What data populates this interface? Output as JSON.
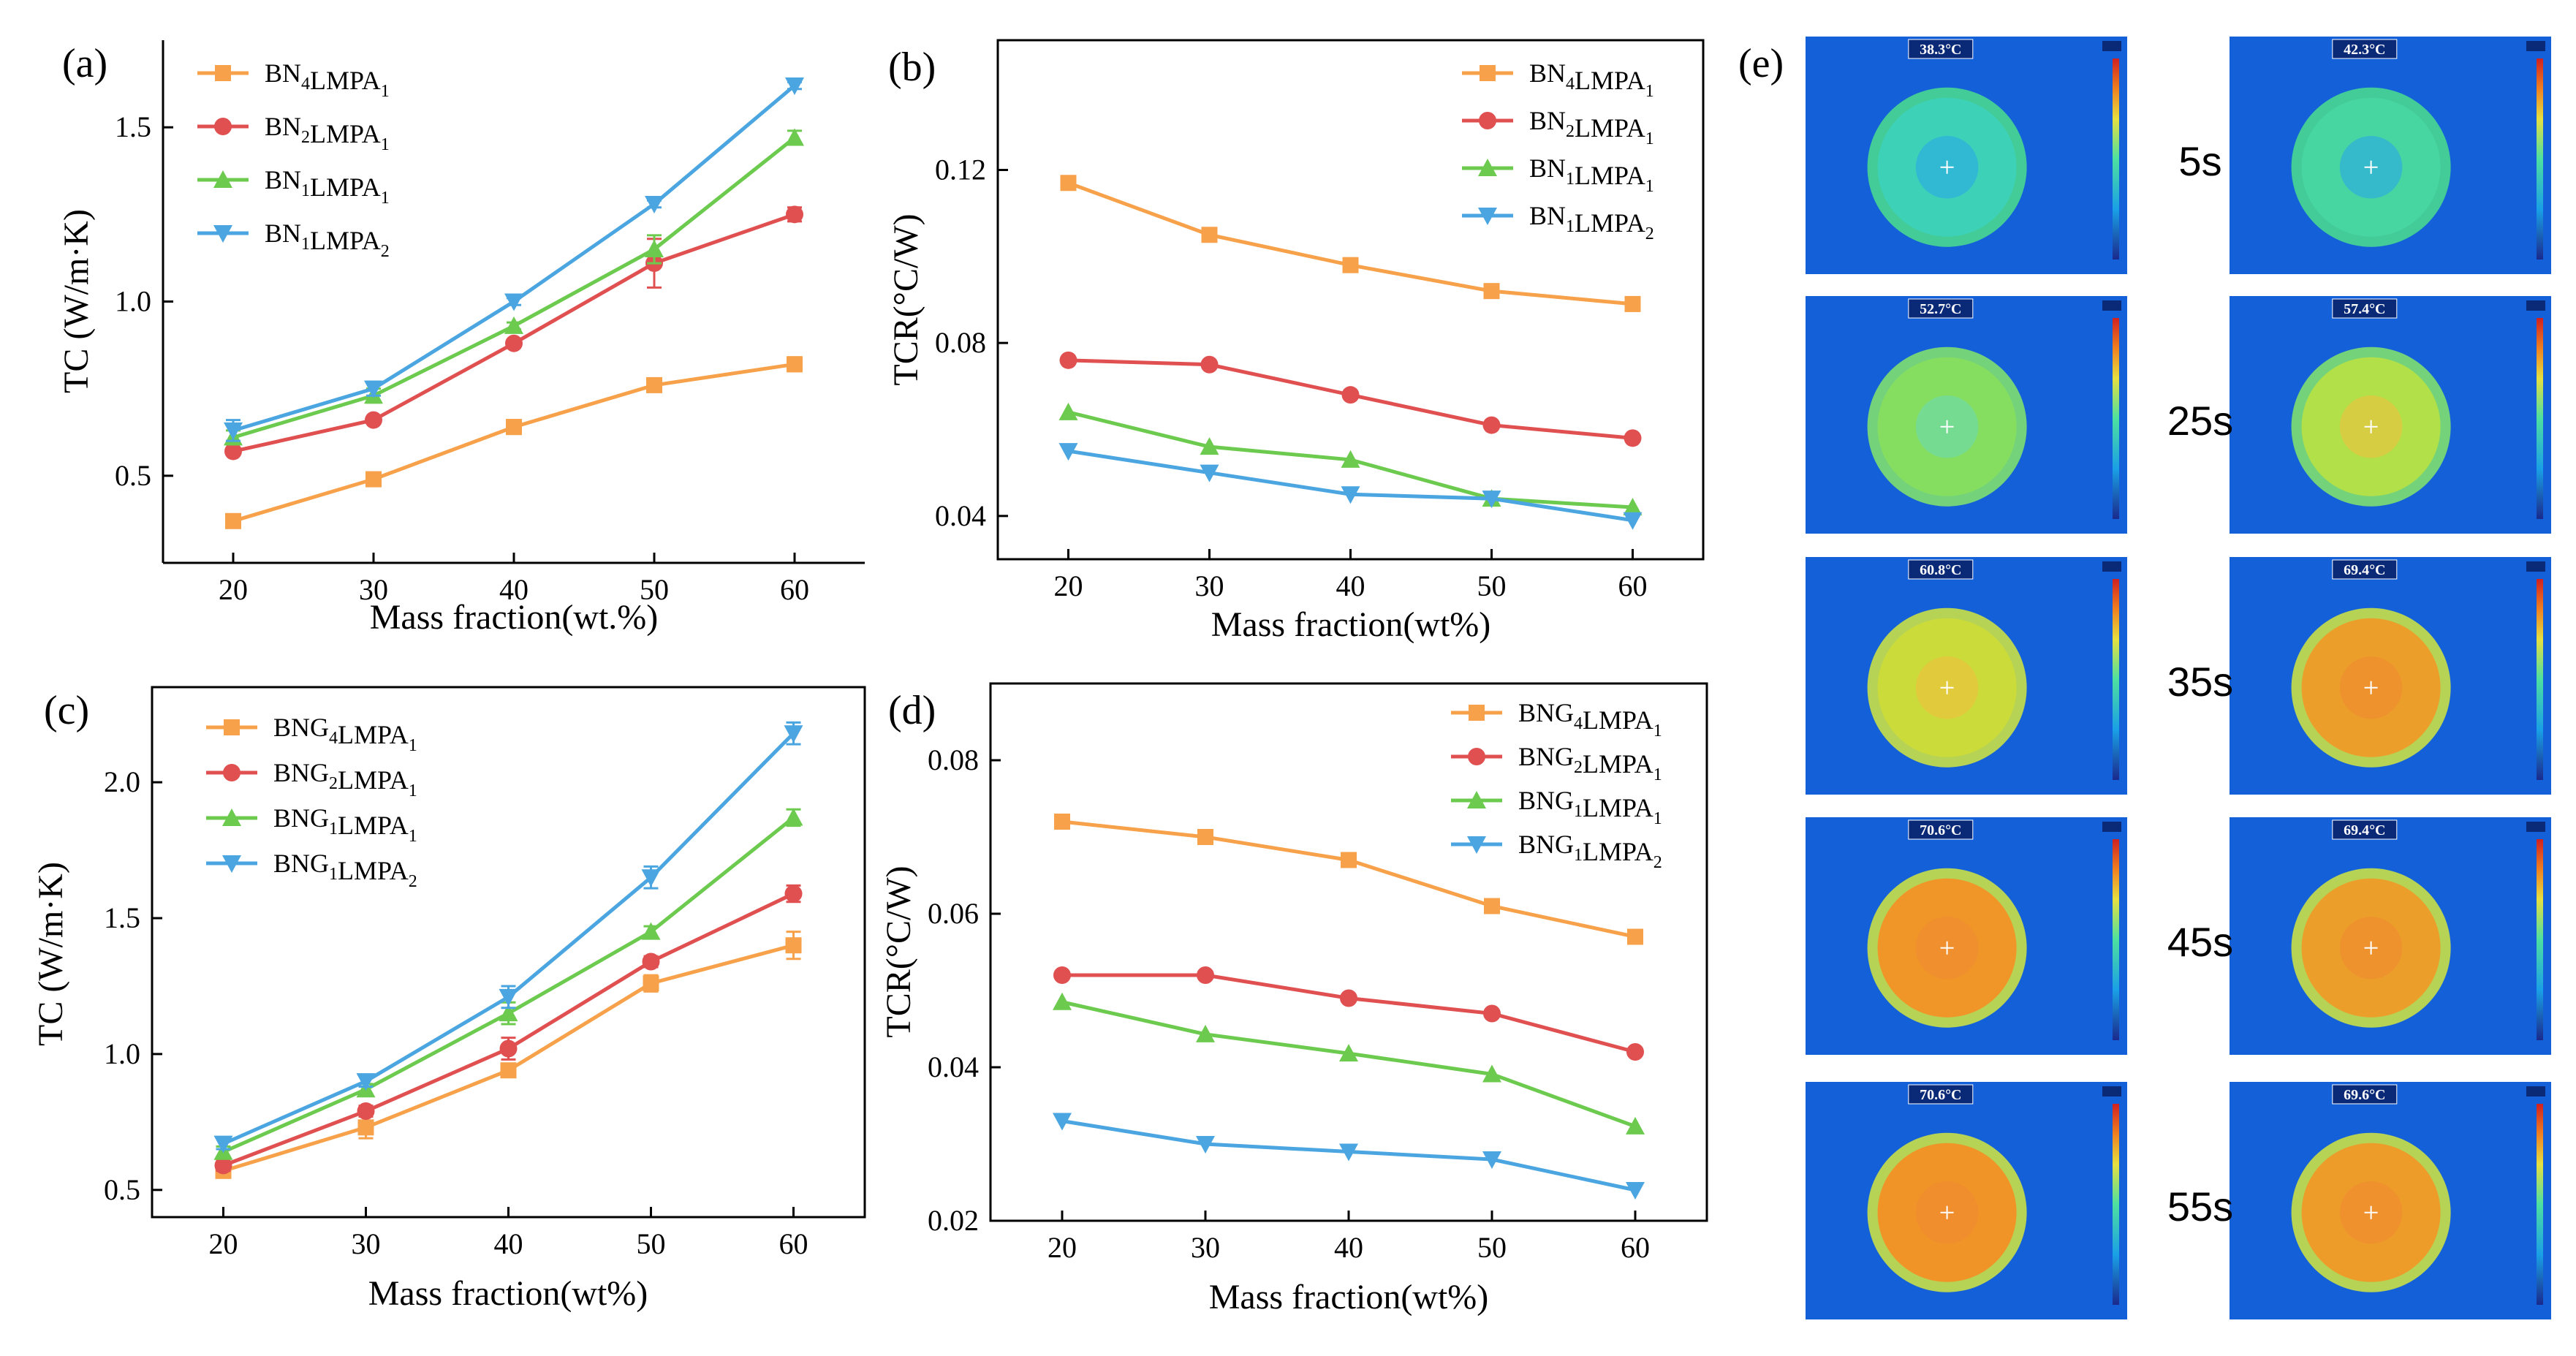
{
  "chart_data": [
    {
      "panel": "(a)",
      "type": "line",
      "xlabel": "Mass fraction(wt.%)",
      "ylabel": "TC (W/m·K)",
      "x": [
        20,
        30,
        40,
        50,
        60
      ],
      "xlim": [
        15,
        65
      ],
      "ylim": [
        0.25,
        1.75
      ],
      "yticks": [
        0.5,
        1.0,
        1.5
      ],
      "ytick_labels": [
        "0.5",
        "1.0",
        "1.5"
      ],
      "error_bars": true,
      "series": [
        {
          "name": "BN4LMPA1",
          "base": "BN",
          "s1": "4",
          "mid": "LMPA",
          "s2": "1",
          "color": "#F7A14A",
          "marker": "square",
          "values": [
            0.37,
            0.49,
            0.64,
            0.76,
            0.82
          ],
          "errors": [
            0.01,
            0.01,
            0.02,
            0.01,
            0.02
          ]
        },
        {
          "name": "BN2LMPA1",
          "base": "BN",
          "s1": "2",
          "mid": "LMPA",
          "s2": "1",
          "color": "#E05050",
          "marker": "circle",
          "values": [
            0.57,
            0.66,
            0.88,
            1.11,
            1.25
          ],
          "errors": [
            0.01,
            0.01,
            0.01,
            0.07,
            0.02
          ]
        },
        {
          "name": "BN1LMPA1",
          "base": "BN",
          "s1": "1",
          "mid": "LMPA",
          "s2": "1",
          "color": "#6CCB4E",
          "marker": "triangle-up",
          "values": [
            0.61,
            0.73,
            0.93,
            1.15,
            1.47
          ],
          "errors": [
            0.02,
            0.02,
            0.01,
            0.04,
            0.02
          ]
        },
        {
          "name": "BN1LMPA2",
          "base": "BN",
          "s1": "1",
          "mid": "LMPA",
          "s2": "2",
          "color": "#4AA5E0",
          "marker": "triangle-down",
          "values": [
            0.63,
            0.75,
            1.0,
            1.28,
            1.62
          ],
          "errors": [
            0.03,
            0.02,
            0.01,
            0.01,
            0.01
          ]
        }
      ]
    },
    {
      "panel": "(b)",
      "type": "line",
      "xlabel": "Mass fraction(wt%)",
      "ylabel": "TCR(°C/W)",
      "x": [
        20,
        30,
        40,
        50,
        60
      ],
      "xlim": [
        15,
        65
      ],
      "ylim": [
        0.03,
        0.15
      ],
      "yticks": [
        0.04,
        0.08,
        0.12
      ],
      "ytick_labels": [
        "0.04",
        "0.08",
        "0.12"
      ],
      "error_bars": false,
      "series": [
        {
          "name": "BN4LMPA1",
          "base": "BN",
          "s1": "4",
          "mid": "LMPA",
          "s2": "1",
          "color": "#F7A14A",
          "marker": "square",
          "values": [
            0.117,
            0.105,
            0.098,
            0.092,
            0.089
          ]
        },
        {
          "name": "BN2LMPA1",
          "base": "BN",
          "s1": "2",
          "mid": "LMPA",
          "s2": "1",
          "color": "#E05050",
          "marker": "circle",
          "values": [
            0.076,
            0.075,
            0.068,
            0.061,
            0.058
          ]
        },
        {
          "name": "BN1LMPA1",
          "base": "BN",
          "s1": "1",
          "mid": "LMPA",
          "s2": "1",
          "color": "#6CCB4E",
          "marker": "triangle-up",
          "values": [
            0.064,
            0.056,
            0.053,
            0.044,
            0.042
          ]
        },
        {
          "name": "BN1LMPA2",
          "base": "BN",
          "s1": "1",
          "mid": "LMPA",
          "s2": "2",
          "color": "#4AA5E0",
          "marker": "triangle-down",
          "values": [
            0.055,
            0.05,
            0.045,
            0.044,
            0.039
          ]
        }
      ]
    },
    {
      "panel": "(c)",
      "type": "line",
      "xlabel": "Mass fraction(wt%)",
      "ylabel": "TC (W/m·K)",
      "x": [
        20,
        30,
        40,
        50,
        60
      ],
      "xlim": [
        15,
        65
      ],
      "ylim": [
        0.4,
        2.35
      ],
      "yticks": [
        0.5,
        1.0,
        1.5,
        2.0
      ],
      "ytick_labels": [
        "0.5",
        "1.0",
        "1.5",
        "2.0"
      ],
      "error_bars": true,
      "series": [
        {
          "name": "BNG4LMPA1",
          "base": "BNG",
          "s1": "4",
          "mid": "LMPA",
          "s2": "1",
          "color": "#F7A14A",
          "marker": "square",
          "values": [
            0.57,
            0.73,
            0.94,
            1.26,
            1.4
          ],
          "errors": [
            0.02,
            0.04,
            0.02,
            0.03,
            0.05
          ]
        },
        {
          "name": "BNG2LMPA1",
          "base": "BNG",
          "s1": "2",
          "mid": "LMPA",
          "s2": "1",
          "color": "#E05050",
          "marker": "circle",
          "values": [
            0.59,
            0.79,
            1.02,
            1.34,
            1.59
          ],
          "errors": [
            0.02,
            0.02,
            0.04,
            0.02,
            0.03
          ]
        },
        {
          "name": "BNG1LMPA1",
          "base": "BNG",
          "s1": "1",
          "mid": "LMPA",
          "s2": "1",
          "color": "#6CCB4E",
          "marker": "triangle-up",
          "values": [
            0.64,
            0.87,
            1.15,
            1.45,
            1.87
          ],
          "errors": [
            0.02,
            0.02,
            0.04,
            0.02,
            0.03
          ]
        },
        {
          "name": "BNG1LMPA2",
          "base": "BNG",
          "s1": "1",
          "mid": "LMPA",
          "s2": "2",
          "color": "#4AA5E0",
          "marker": "triangle-down",
          "values": [
            0.67,
            0.9,
            1.21,
            1.65,
            2.18
          ],
          "errors": [
            0.02,
            0.02,
            0.04,
            0.04,
            0.04
          ]
        }
      ]
    },
    {
      "panel": "(d)",
      "type": "line",
      "xlabel": "Mass fraction(wt%)",
      "ylabel": "TCR(°C/W)",
      "x": [
        20,
        30,
        40,
        50,
        60
      ],
      "xlim": [
        15,
        65
      ],
      "ylim": [
        0.02,
        0.09
      ],
      "yticks": [
        0.02,
        0.04,
        0.06,
        0.08
      ],
      "ytick_labels": [
        "0.02",
        "0.04",
        "0.06",
        "0.08"
      ],
      "error_bars": false,
      "series": [
        {
          "name": "BNG4LMPA1",
          "base": "BNG",
          "s1": "4",
          "mid": "LMPA",
          "s2": "1",
          "color": "#F7A14A",
          "marker": "square",
          "values": [
            0.072,
            0.07,
            0.067,
            0.061,
            0.057
          ]
        },
        {
          "name": "BNG2LMPA1",
          "base": "BNG",
          "s1": "2",
          "mid": "LMPA",
          "s2": "1",
          "color": "#E05050",
          "marker": "circle",
          "values": [
            0.052,
            0.052,
            0.049,
            0.047,
            0.042
          ]
        },
        {
          "name": "BNG1LMPA1",
          "base": "BNG",
          "s1": "1",
          "mid": "LMPA",
          "s2": "1",
          "color": "#6CCB4E",
          "marker": "triangle-up",
          "values": [
            0.0485,
            0.0443,
            0.0418,
            0.0391,
            0.0323
          ]
        },
        {
          "name": "BNG1LMPA2",
          "base": "BNG",
          "s1": "1",
          "mid": "LMPA",
          "s2": "2",
          "color": "#4AA5E0",
          "marker": "triangle-down",
          "values": [
            0.033,
            0.03,
            0.029,
            0.028,
            0.024
          ]
        }
      ]
    }
  ],
  "thermal_images": {
    "panel": "(e)",
    "times": [
      "5s",
      "25s",
      "35s",
      "45s",
      "55s"
    ],
    "left_temps": [
      "38.3°C",
      "52.7°C",
      "60.8°C",
      "70.6°C",
      "70.6°C"
    ],
    "right_temps": [
      "42.3°C",
      "57.4°C",
      "69.4°C",
      "69.4°C",
      "69.6°C"
    ],
    "left_levels": [
      0.15,
      0.45,
      0.62,
      0.85,
      0.86
    ],
    "right_levels": [
      0.22,
      0.55,
      0.82,
      0.82,
      0.83
    ],
    "background_color": "#1460D8"
  }
}
